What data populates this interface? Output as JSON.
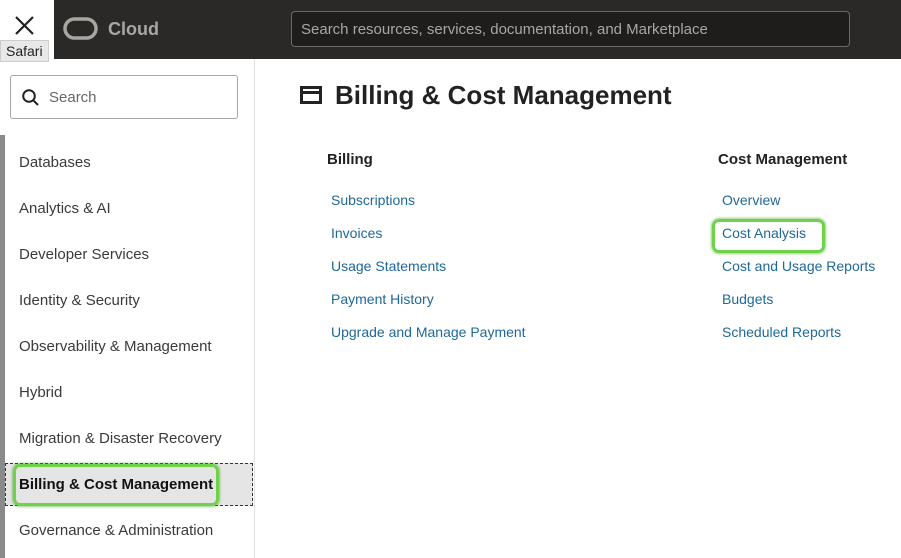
{
  "header": {
    "tooltip": "Safari",
    "brand": "Cloud",
    "search_placeholder": "Search resources, services, documentation, and Marketplace"
  },
  "sidebar": {
    "search_placeholder": "Search",
    "items": [
      "Databases",
      "Analytics & AI",
      "Developer Services",
      "Identity & Security",
      "Observability & Management",
      "Hybrid",
      "Migration & Disaster Recovery",
      "Billing & Cost Management",
      "Governance & Administration"
    ]
  },
  "main": {
    "title": "Billing & Cost Management",
    "columns": [
      {
        "heading": "Billing",
        "links": [
          "Subscriptions",
          "Invoices",
          "Usage Statements",
          "Payment History",
          "Upgrade and Manage Payment"
        ]
      },
      {
        "heading": "Cost Management",
        "links": [
          "Overview",
          "Cost Analysis",
          "Cost and Usage Reports",
          "Budgets",
          "Scheduled Reports"
        ]
      }
    ]
  }
}
